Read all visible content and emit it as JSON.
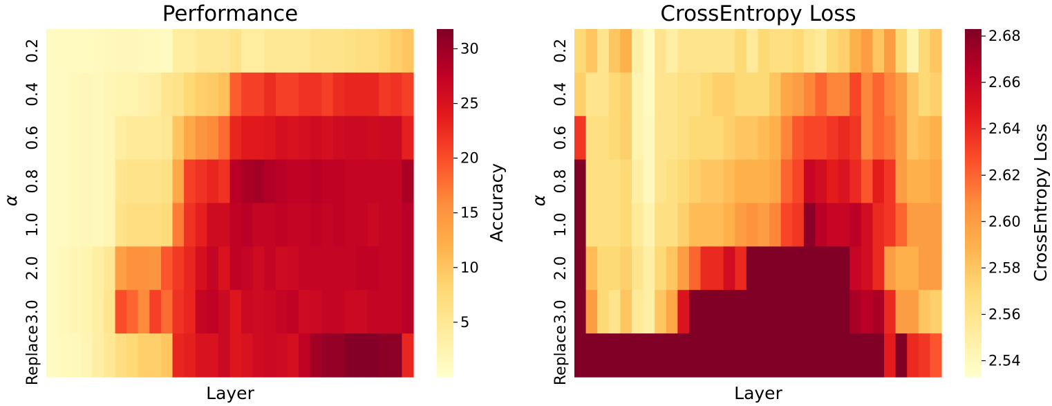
{
  "chart_data": [
    {
      "type": "heatmap",
      "title": "Performance",
      "xlabel": "Layer",
      "ylabel": "α",
      "y_categories": [
        "0.2",
        "0.4",
        "0.6",
        "0.8",
        "1.0",
        "2.0",
        "3.0",
        "Replace"
      ],
      "n_layers": 32,
      "colorbar": {
        "label": "Accuracy",
        "range": [
          0,
          31.8
        ],
        "ticks": [
          "5",
          "10",
          "15",
          "20",
          "25",
          "30"
        ],
        "tick_values": [
          5,
          10,
          15,
          20,
          25,
          30
        ]
      },
      "values": [
        [
          1.0,
          1.1,
          1.1,
          1.1,
          1.3,
          1.5,
          1.7,
          1.7,
          1.3,
          1.3,
          1.0,
          4.0,
          4.0,
          5.0,
          5.0,
          5.0,
          6.0,
          4.0,
          4.0,
          5.0,
          5.0,
          5.0,
          5.0,
          6.0,
          6.0,
          6.0,
          6.5,
          7.0,
          7.0,
          8.0,
          9.0,
          10.0
        ],
        [
          1.0,
          1.0,
          1.5,
          1.7,
          1.5,
          2.0,
          2.5,
          2.5,
          3.0,
          3.5,
          5.5,
          6.0,
          8.0,
          9.0,
          9.5,
          10.5,
          19.0,
          21.0,
          21.0,
          22.5,
          21.0,
          21.0,
          22.0,
          22.0,
          21.0,
          22.5,
          23.0,
          23.0,
          23.0,
          21.5,
          22.0,
          21.0
        ],
        [
          1.0,
          1.0,
          1.5,
          1.7,
          1.5,
          2.0,
          4.0,
          4.5,
          4.5,
          4.5,
          5.0,
          10.0,
          13.0,
          15.0,
          16.0,
          18.0,
          23.0,
          24.0,
          24.0,
          24.5,
          25.5,
          25.0,
          25.5,
          26.0,
          25.5,
          26.0,
          26.5,
          26.5,
          26.0,
          26.5,
          26.5,
          23.5
        ],
        [
          1.0,
          1.0,
          1.5,
          1.7,
          1.5,
          2.0,
          5.5,
          6.0,
          6.0,
          6.0,
          6.5,
          13.0,
          21.0,
          22.0,
          23.0,
          22.0,
          28.0,
          29.0,
          29.5,
          28.5,
          28.0,
          27.5,
          27.5,
          28.0,
          27.5,
          27.5,
          27.0,
          27.0,
          27.0,
          27.0,
          27.0,
          29.0
        ],
        [
          1.0,
          1.0,
          1.5,
          1.7,
          1.5,
          2.0,
          6.0,
          7.0,
          7.0,
          7.0,
          7.5,
          17.0,
          22.0,
          23.5,
          26.0,
          26.0,
          27.5,
          28.0,
          27.0,
          27.0,
          27.5,
          27.0,
          27.0,
          27.5,
          27.0,
          27.5,
          27.0,
          27.0,
          26.5,
          27.0,
          27.0,
          28.0
        ],
        [
          1.0,
          1.5,
          2.0,
          2.5,
          3.5,
          5.0,
          14.0,
          15.5,
          15.5,
          15.0,
          19.5,
          21.5,
          23.0,
          25.5,
          27.0,
          25.0,
          27.5,
          27.0,
          26.0,
          27.0,
          26.0,
          26.5,
          27.0,
          27.0,
          27.0,
          27.0,
          27.0,
          27.5,
          27.5,
          27.0,
          27.0,
          28.0
        ],
        [
          1.0,
          1.5,
          2.0,
          2.5,
          3.5,
          5.5,
          20.0,
          18.5,
          16.0,
          21.0,
          18.0,
          22.0,
          23.0,
          27.0,
          27.5,
          26.5,
          24.5,
          26.5,
          26.0,
          26.5,
          27.0,
          27.5,
          26.0,
          26.5,
          27.0,
          27.0,
          26.5,
          26.5,
          27.0,
          27.0,
          27.0,
          28.0
        ],
        [
          1.0,
          1.3,
          1.5,
          2.0,
          3.5,
          5.0,
          7.0,
          8.0,
          9.0,
          9.0,
          10.0,
          23.0,
          23.5,
          25.0,
          25.0,
          26.5,
          24.5,
          25.0,
          26.0,
          26.5,
          26.0,
          25.5,
          27.5,
          29.5,
          30.5,
          30.5,
          31.5,
          31.5,
          31.5,
          31.0,
          31.0,
          23.0
        ]
      ]
    },
    {
      "type": "heatmap",
      "title": "CrossEntropy Loss",
      "xlabel": "Layer",
      "ylabel": "α",
      "y_categories": [
        "0.2",
        "0.4",
        "0.6",
        "0.8",
        "1.0",
        "2.0",
        "3.0",
        "Replace"
      ],
      "n_layers": 32,
      "colorbar": {
        "label": "CrossEntropy Loss",
        "range": [
          2.533,
          2.683
        ],
        "ticks": [
          "2.54",
          "2.56",
          "2.58",
          "2.60",
          "2.62",
          "2.64",
          "2.66",
          "2.68"
        ],
        "tick_values": [
          2.54,
          2.56,
          2.58,
          2.6,
          2.62,
          2.64,
          2.66,
          2.68
        ]
      },
      "values": [
        [
          2.57,
          2.58,
          2.56,
          2.58,
          2.59,
          2.55,
          2.537,
          2.56,
          2.55,
          2.56,
          2.56,
          2.56,
          2.56,
          2.56,
          2.57,
          2.555,
          2.57,
          2.565,
          2.565,
          2.57,
          2.56,
          2.555,
          2.57,
          2.575,
          2.59,
          2.6,
          2.58,
          2.6,
          2.57,
          2.545,
          2.57,
          2.58
        ],
        [
          2.575,
          2.56,
          2.56,
          2.57,
          2.575,
          2.545,
          2.538,
          2.56,
          2.56,
          2.565,
          2.565,
          2.57,
          2.575,
          2.575,
          2.57,
          2.57,
          2.57,
          2.58,
          2.595,
          2.6,
          2.61,
          2.62,
          2.61,
          2.61,
          2.63,
          2.61,
          2.62,
          2.61,
          2.6,
          2.58,
          2.57,
          2.575
        ],
        [
          2.635,
          2.565,
          2.565,
          2.57,
          2.575,
          2.545,
          2.54,
          2.56,
          2.56,
          2.565,
          2.57,
          2.57,
          2.57,
          2.575,
          2.58,
          2.58,
          2.585,
          2.59,
          2.61,
          2.625,
          2.63,
          2.63,
          2.635,
          2.64,
          2.635,
          2.61,
          2.62,
          2.615,
          2.6,
          2.58,
          2.585,
          2.59
        ],
        [
          2.683,
          2.565,
          2.565,
          2.565,
          2.57,
          2.55,
          2.54,
          2.56,
          2.565,
          2.57,
          2.575,
          2.58,
          2.58,
          2.585,
          2.59,
          2.59,
          2.59,
          2.595,
          2.62,
          2.63,
          2.66,
          2.655,
          2.645,
          2.65,
          2.64,
          2.625,
          2.645,
          2.635,
          2.6,
          2.59,
          2.59,
          2.595
        ],
        [
          2.683,
          2.565,
          2.565,
          2.565,
          2.57,
          2.555,
          2.545,
          2.565,
          2.565,
          2.575,
          2.585,
          2.585,
          2.585,
          2.59,
          2.6,
          2.605,
          2.6,
          2.61,
          2.63,
          2.635,
          2.68,
          2.665,
          2.66,
          2.66,
          2.665,
          2.655,
          2.64,
          2.635,
          2.62,
          2.6,
          2.6,
          2.6
        ],
        [
          2.683,
          2.585,
          2.57,
          2.57,
          2.575,
          2.56,
          2.55,
          2.57,
          2.58,
          2.6,
          2.62,
          2.64,
          2.64,
          2.655,
          2.64,
          2.683,
          2.683,
          2.683,
          2.683,
          2.683,
          2.683,
          2.683,
          2.683,
          2.683,
          2.66,
          2.655,
          2.64,
          2.6,
          2.59,
          2.59,
          2.6,
          2.6
        ],
        [
          2.683,
          2.6,
          2.57,
          2.56,
          2.58,
          2.555,
          2.55,
          2.58,
          2.595,
          2.65,
          2.683,
          2.683,
          2.683,
          2.683,
          2.683,
          2.683,
          2.683,
          2.683,
          2.683,
          2.683,
          2.683,
          2.683,
          2.683,
          2.683,
          2.67,
          2.665,
          2.67,
          2.64,
          2.6,
          2.6,
          2.58,
          2.575
        ],
        [
          2.683,
          2.683,
          2.683,
          2.683,
          2.683,
          2.683,
          2.683,
          2.683,
          2.683,
          2.683,
          2.683,
          2.683,
          2.683,
          2.683,
          2.683,
          2.683,
          2.683,
          2.683,
          2.683,
          2.683,
          2.683,
          2.683,
          2.683,
          2.683,
          2.683,
          2.683,
          2.683,
          2.645,
          2.683,
          2.64,
          2.635,
          2.625
        ]
      ]
    }
  ]
}
